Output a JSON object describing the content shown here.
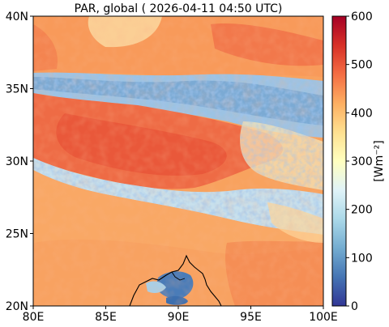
{
  "chart_data": {
    "type": "heatmap",
    "title": "PAR, global ( 2026-04-11 04:50 UTC)",
    "xlabel": "",
    "ylabel": "",
    "x_ticks": [
      "80E",
      "85E",
      "90E",
      "95E",
      "100E"
    ],
    "x_tick_values": [
      80,
      85,
      90,
      95,
      100
    ],
    "y_ticks": [
      "20N",
      "25N",
      "30N",
      "35N",
      "40N"
    ],
    "y_tick_values": [
      20,
      25,
      30,
      35,
      40
    ],
    "xlim": [
      80,
      100
    ],
    "ylim": [
      20,
      40
    ],
    "colorbar": {
      "label": "[Wm⁻²]",
      "ticks": [
        "0",
        "100",
        "200",
        "300",
        "400",
        "500",
        "600"
      ],
      "tick_values": [
        0,
        100,
        200,
        300,
        400,
        500,
        600
      ],
      "range": [
        0,
        600
      ],
      "colormap": "RdYlBu_r"
    },
    "field_regions": [
      {
        "region": "north background (36-40N)",
        "approx_value": 430
      },
      {
        "region": "northern cloud band (~34-36N)",
        "approx_value": 220
      },
      {
        "region": "Tibetan plateau (~29-33N, 81-93E)",
        "approx_value": 520
      },
      {
        "region": "southern cloud band (~27-30N)",
        "approx_value": 290
      },
      {
        "region": "south background (20-26N)",
        "approx_value": 440
      },
      {
        "region": "cloud patch (~21-22N, 89-91E)",
        "approx_value": 150
      }
    ]
  }
}
